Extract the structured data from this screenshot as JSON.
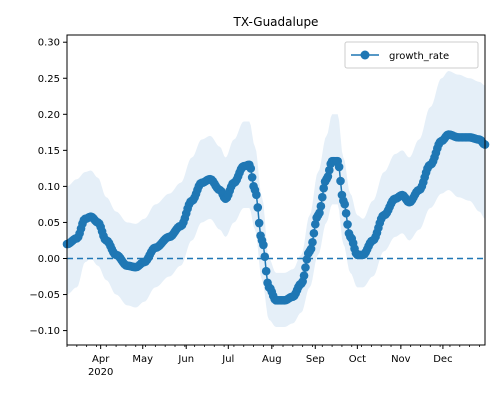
{
  "chart_data": {
    "type": "line",
    "title": "TX-Guadalupe",
    "xlabel": "",
    "ylabel": "",
    "x_start": "2020-03-08",
    "x_end": "2020-12-31",
    "ylim": [
      -0.12,
      0.31
    ],
    "yticks": [
      -0.1,
      -0.05,
      0.0,
      0.05,
      0.1,
      0.15,
      0.2,
      0.25,
      0.3
    ],
    "ytick_labels": [
      "−0.10",
      "−0.05",
      "0.00",
      "0.05",
      "0.10",
      "0.15",
      "0.20",
      "0.25",
      "0.30"
    ],
    "xticks": [
      {
        "date": "2020-04-01",
        "label": "Apr",
        "sublabel": "2020"
      },
      {
        "date": "2020-05-01",
        "label": "May"
      },
      {
        "date": "2020-06-01",
        "label": "Jun"
      },
      {
        "date": "2020-07-01",
        "label": "Jul"
      },
      {
        "date": "2020-08-01",
        "label": "Aug"
      },
      {
        "date": "2020-09-01",
        "label": "Sep"
      },
      {
        "date": "2020-10-01",
        "label": "Oct"
      },
      {
        "date": "2020-11-01",
        "label": "Nov"
      },
      {
        "date": "2020-12-01",
        "label": "Dec"
      }
    ],
    "reference_line": {
      "y": 0.0,
      "style": "dashed",
      "color": "#1f77b4"
    },
    "legend": {
      "position": "top-right",
      "entries": [
        "growth_rate"
      ]
    },
    "series": [
      {
        "name": "growth_rate",
        "color": "#1f77b4",
        "band_color": "#dce9f6",
        "anchors": [
          {
            "date": "2020-03-08",
            "y": 0.02,
            "lo": -0.05,
            "hi": 0.1
          },
          {
            "date": "2020-03-15",
            "y": 0.028,
            "lo": -0.04,
            "hi": 0.11
          },
          {
            "date": "2020-03-21",
            "y": 0.055,
            "lo": -0.005,
            "hi": 0.12
          },
          {
            "date": "2020-03-25",
            "y": 0.058,
            "lo": 0.0,
            "hi": 0.122
          },
          {
            "date": "2020-03-30",
            "y": 0.05,
            "lo": -0.01,
            "hi": 0.112
          },
          {
            "date": "2020-04-05",
            "y": 0.025,
            "lo": -0.03,
            "hi": 0.085
          },
          {
            "date": "2020-04-12",
            "y": 0.005,
            "lo": -0.05,
            "hi": 0.065
          },
          {
            "date": "2020-04-20",
            "y": -0.01,
            "lo": -0.065,
            "hi": 0.05
          },
          {
            "date": "2020-04-26",
            "y": -0.012,
            "lo": -0.068,
            "hi": 0.048
          },
          {
            "date": "2020-05-02",
            "y": -0.005,
            "lo": -0.06,
            "hi": 0.055
          },
          {
            "date": "2020-05-10",
            "y": 0.015,
            "lo": -0.04,
            "hi": 0.075
          },
          {
            "date": "2020-05-20",
            "y": 0.03,
            "lo": -0.025,
            "hi": 0.09
          },
          {
            "date": "2020-05-28",
            "y": 0.045,
            "lo": -0.01,
            "hi": 0.105
          },
          {
            "date": "2020-06-05",
            "y": 0.08,
            "lo": 0.025,
            "hi": 0.14
          },
          {
            "date": "2020-06-12",
            "y": 0.105,
            "lo": 0.05,
            "hi": 0.165
          },
          {
            "date": "2020-06-18",
            "y": 0.11,
            "lo": 0.055,
            "hi": 0.17
          },
          {
            "date": "2020-06-25",
            "y": 0.095,
            "lo": 0.04,
            "hi": 0.155
          },
          {
            "date": "2020-06-29",
            "y": 0.083,
            "lo": 0.03,
            "hi": 0.14
          },
          {
            "date": "2020-07-05",
            "y": 0.105,
            "lo": 0.05,
            "hi": 0.165
          },
          {
            "date": "2020-07-12",
            "y": 0.128,
            "lo": 0.07,
            "hi": 0.19
          },
          {
            "date": "2020-07-16",
            "y": 0.13,
            "lo": 0.07,
            "hi": 0.19
          },
          {
            "date": "2020-07-20",
            "y": 0.095,
            "lo": 0.04,
            "hi": 0.155
          },
          {
            "date": "2020-07-25",
            "y": 0.025,
            "lo": -0.03,
            "hi": 0.085
          },
          {
            "date": "2020-07-30",
            "y": -0.04,
            "lo": -0.085,
            "hi": 0.0
          },
          {
            "date": "2020-08-04",
            "y": -0.058,
            "lo": -0.095,
            "hi": -0.02
          },
          {
            "date": "2020-08-10",
            "y": -0.058,
            "lo": -0.095,
            "hi": -0.02
          },
          {
            "date": "2020-08-16",
            "y": -0.053,
            "lo": -0.09,
            "hi": -0.015
          },
          {
            "date": "2020-08-22",
            "y": -0.035,
            "lo": -0.075,
            "hi": 0.005
          },
          {
            "date": "2020-08-28",
            "y": 0.01,
            "lo": -0.04,
            "hi": 0.06
          },
          {
            "date": "2020-09-03",
            "y": 0.06,
            "lo": 0.005,
            "hi": 0.12
          },
          {
            "date": "2020-09-09",
            "y": 0.11,
            "lo": 0.05,
            "hi": 0.17
          },
          {
            "date": "2020-09-13",
            "y": 0.135,
            "lo": 0.075,
            "hi": 0.2
          },
          {
            "date": "2020-09-17",
            "y": 0.135,
            "lo": 0.075,
            "hi": 0.2
          },
          {
            "date": "2020-09-21",
            "y": 0.08,
            "lo": 0.02,
            "hi": 0.14
          },
          {
            "date": "2020-09-26",
            "y": 0.03,
            "lo": -0.02,
            "hi": 0.09
          },
          {
            "date": "2020-10-01",
            "y": 0.005,
            "lo": -0.04,
            "hi": 0.06
          },
          {
            "date": "2020-10-05",
            "y": 0.005,
            "lo": -0.04,
            "hi": 0.055
          },
          {
            "date": "2020-10-12",
            "y": 0.025,
            "lo": -0.025,
            "hi": 0.08
          },
          {
            "date": "2020-10-20",
            "y": 0.06,
            "lo": 0.01,
            "hi": 0.12
          },
          {
            "date": "2020-10-28",
            "y": 0.083,
            "lo": 0.03,
            "hi": 0.145
          },
          {
            "date": "2020-11-02",
            "y": 0.088,
            "lo": 0.035,
            "hi": 0.15
          },
          {
            "date": "2020-11-07",
            "y": 0.078,
            "lo": 0.025,
            "hi": 0.14
          },
          {
            "date": "2020-11-14",
            "y": 0.095,
            "lo": 0.04,
            "hi": 0.165
          },
          {
            "date": "2020-11-22",
            "y": 0.13,
            "lo": 0.07,
            "hi": 0.21
          },
          {
            "date": "2020-11-30",
            "y": 0.163,
            "lo": 0.09,
            "hi": 0.25
          },
          {
            "date": "2020-12-05",
            "y": 0.172,
            "lo": 0.095,
            "hi": 0.26
          },
          {
            "date": "2020-12-12",
            "y": 0.168,
            "lo": 0.085,
            "hi": 0.255
          },
          {
            "date": "2020-12-20",
            "y": 0.168,
            "lo": 0.08,
            "hi": 0.25
          },
          {
            "date": "2020-12-27",
            "y": 0.165,
            "lo": 0.065,
            "hi": 0.245
          },
          {
            "date": "2020-12-31",
            "y": 0.158,
            "lo": 0.055,
            "hi": 0.24
          }
        ]
      }
    ]
  }
}
